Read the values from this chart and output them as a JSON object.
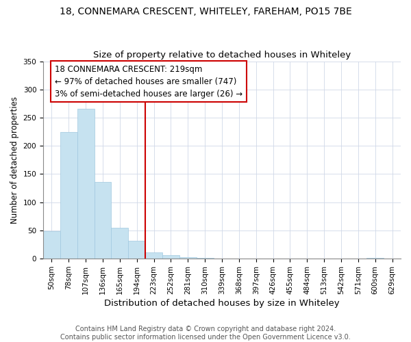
{
  "title": "18, CONNEMARA CRESCENT, WHITELEY, FAREHAM, PO15 7BE",
  "subtitle": "Size of property relative to detached houses in Whiteley",
  "xlabel": "Distribution of detached houses by size in Whiteley",
  "ylabel": "Number of detached properties",
  "bin_labels": [
    "50sqm",
    "78sqm",
    "107sqm",
    "136sqm",
    "165sqm",
    "194sqm",
    "223sqm",
    "252sqm",
    "281sqm",
    "310sqm",
    "339sqm",
    "368sqm",
    "397sqm",
    "426sqm",
    "455sqm",
    "484sqm",
    "513sqm",
    "542sqm",
    "571sqm",
    "600sqm",
    "629sqm"
  ],
  "bar_heights": [
    49,
    224,
    266,
    136,
    55,
    32,
    11,
    6,
    3,
    2,
    0,
    0,
    0,
    0,
    0,
    0,
    0,
    0,
    0,
    2,
    0
  ],
  "bar_color": "#c6e2f0",
  "bar_edge_color": "#a0c8e0",
  "property_line_color": "#cc0000",
  "annotation_line1": "18 CONNEMARA CRESCENT: 219sqm",
  "annotation_line2": "← 97% of detached houses are smaller (747)",
  "annotation_line3": "3% of semi-detached houses are larger (26) →",
  "annotation_box_color": "#ffffff",
  "annotation_box_edge_color": "#cc0000",
  "ylim": [
    0,
    350
  ],
  "yticks": [
    0,
    50,
    100,
    150,
    200,
    250,
    300,
    350
  ],
  "footer_text": "Contains HM Land Registry data © Crown copyright and database right 2024.\nContains public sector information licensed under the Open Government Licence v3.0.",
  "title_fontsize": 10,
  "subtitle_fontsize": 9.5,
  "xlabel_fontsize": 9.5,
  "ylabel_fontsize": 8.5,
  "annotation_fontsize": 8.5,
  "footer_fontsize": 7,
  "tick_fontsize": 7.5
}
